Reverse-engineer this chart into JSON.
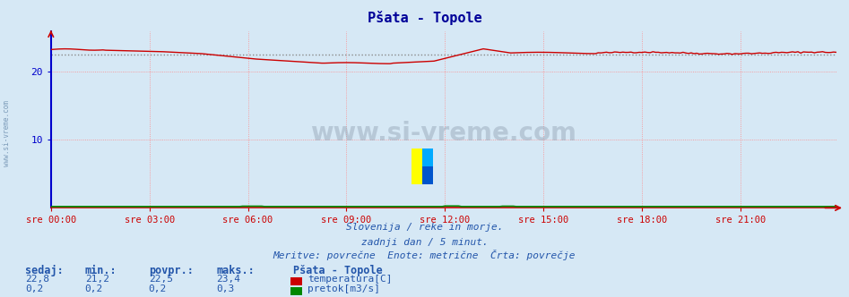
{
  "title": "Pšata - Topole",
  "background_color": "#d6e8f5",
  "plot_bg_color": "#d6e8f5",
  "grid_color": "#ff8888",
  "grid_linestyle": ":",
  "xlim": [
    0,
    287
  ],
  "ylim": [
    0,
    26
  ],
  "yticks": [
    10,
    20
  ],
  "xtick_labels": [
    "sre 00:00",
    "sre 03:00",
    "sre 06:00",
    "sre 09:00",
    "sre 12:00",
    "sre 15:00",
    "sre 18:00",
    "sre 21:00"
  ],
  "xtick_positions": [
    0,
    36,
    72,
    108,
    144,
    180,
    216,
    252
  ],
  "temp_color": "#cc0000",
  "flow_color": "#008800",
  "avg_line_color": "#888888",
  "avg_line_value": 22.5,
  "temp_min": 21.2,
  "temp_max": 23.4,
  "temp_avg": 22.5,
  "temp_current": 22.8,
  "flow_min": 0.2,
  "flow_max": 0.3,
  "flow_avg": 0.2,
  "flow_current": 0.2,
  "subtitle1": "Slovenija / reke in morje.",
  "subtitle2": "zadnji dan / 5 minut.",
  "subtitle3": "Meritve: povrečne  Enote: metrične  Črta: povrečje",
  "footer_label1": "sedaj:",
  "footer_label2": "min.:",
  "footer_label3": "povpr.:",
  "footer_label4": "maks.:",
  "footer_station": "Pšata - Topole",
  "footer_temp_label": "temperatura[C]",
  "footer_flow_label": "pretok[m3/s]",
  "text_color": "#2255aa",
  "title_color": "#000099",
  "watermark": "www.si-vreme.com",
  "left_spine_color": "#0000cc",
  "bottom_spine_color": "#cc0000"
}
